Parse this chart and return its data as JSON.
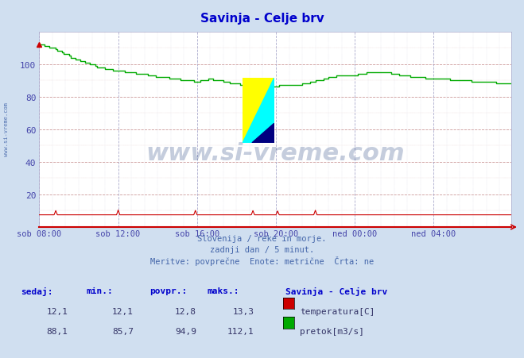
{
  "title": "Savinja - Celje brv",
  "title_color": "#0000cc",
  "bg_color": "#d0dff0",
  "plot_bg_color": "#ffffff",
  "grid_color_major": "#cc9999",
  "grid_color_minor": "#ddbbbb",
  "grid_vert_major": "#aaaacc",
  "xlabel_ticks": [
    "sob 08:00",
    "sob 12:00",
    "sob 16:00",
    "sob 20:00",
    "ned 00:00",
    "ned 04:00"
  ],
  "xlabel_tick_positions": [
    0,
    48,
    96,
    144,
    192,
    240
  ],
  "total_points": 288,
  "ylim": [
    0,
    120
  ],
  "yticks": [
    20,
    40,
    60,
    80,
    100
  ],
  "ylabel_color": "#4444aa",
  "subtitle_lines": [
    "Slovenija / reke in morje.",
    "zadnji dan / 5 minut.",
    "Meritve: povprečne  Enote: metrične  Črta: ne"
  ],
  "subtitle_color": "#4466aa",
  "watermark_text": "www.si-vreme.com",
  "watermark_color": "#1a3a7a",
  "watermark_alpha": 0.25,
  "side_text": "www.si-vreme.com",
  "side_color": "#4466aa",
  "temp_color": "#cc0000",
  "flow_color": "#00aa00",
  "temp_sedaj": 12.1,
  "temp_min": 12.1,
  "temp_povpr": 12.8,
  "temp_maks": 13.3,
  "flow_sedaj": 88.1,
  "flow_min": 85.7,
  "flow_povpr": 94.9,
  "flow_maks": 112.1,
  "legend_title": "Savinja - Celje brv",
  "legend_title_color": "#0000cc",
  "table_header_color": "#0000cc",
  "table_value_color": "#333366"
}
